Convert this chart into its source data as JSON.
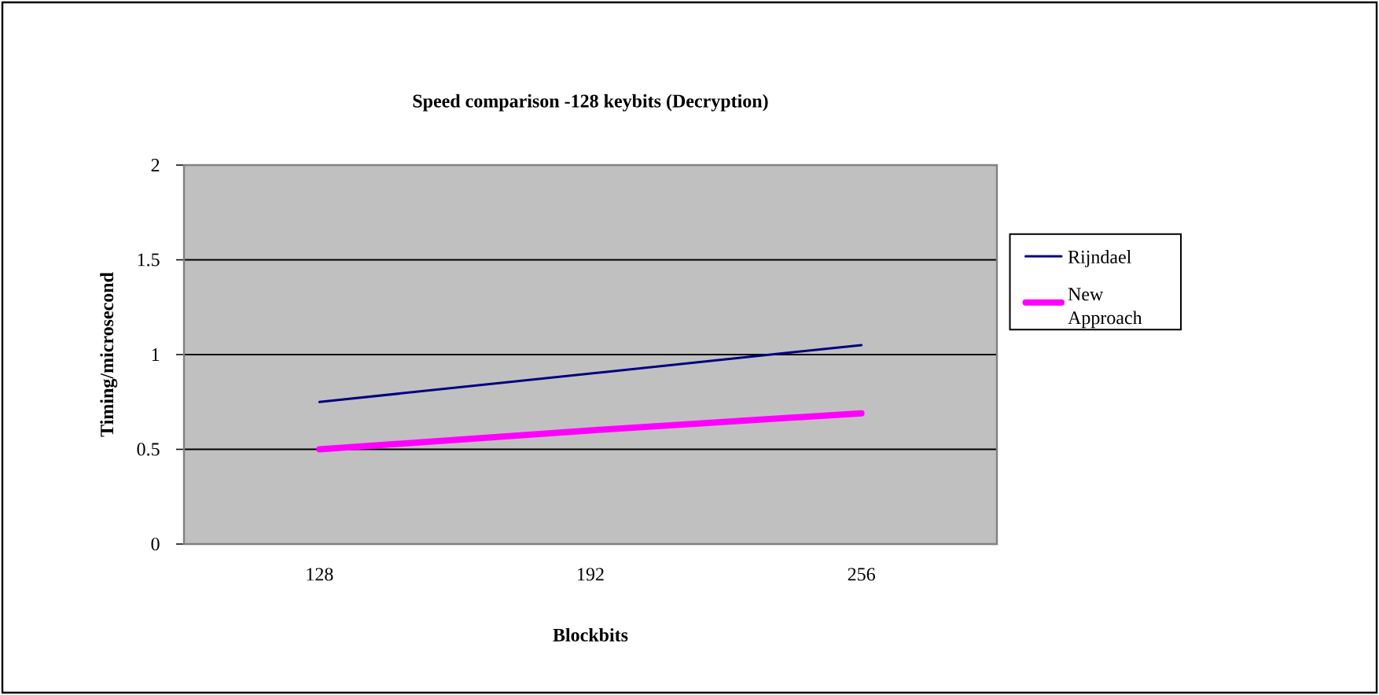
{
  "chart_data": {
    "type": "line",
    "title": "Speed comparison -128 keybits (Decryption)",
    "xlabel": "Blockbits",
    "ylabel": "Timing/microsecond",
    "categories": [
      "128",
      "192",
      "256"
    ],
    "series": [
      {
        "name": "Rijndael",
        "color": "#000080",
        "values": [
          0.75,
          0.9,
          1.05
        ]
      },
      {
        "name": "New Approach",
        "color": "#ff00ff",
        "values": [
          0.5,
          0.6,
          0.69
        ]
      }
    ],
    "ylim": [
      0,
      2
    ],
    "yticks": [
      0,
      0.5,
      1,
      1.5,
      2
    ],
    "grid": "y",
    "legend": "right",
    "marker": "none",
    "line_style": "solid"
  }
}
